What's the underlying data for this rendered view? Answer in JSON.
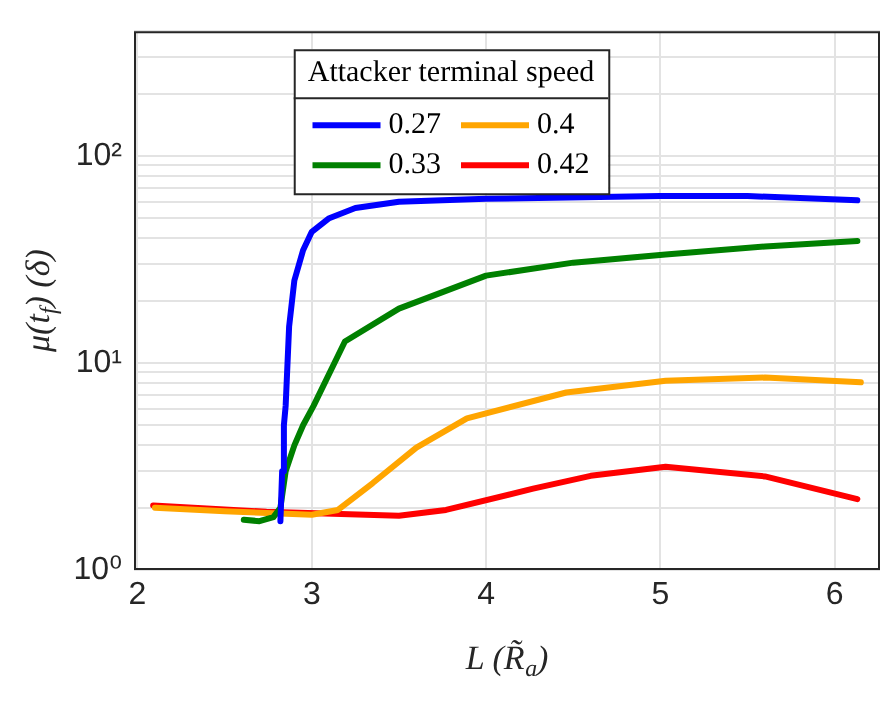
{
  "chart_data": {
    "type": "line",
    "xlabel": "L (R̃$_{a}$)",
    "ylabel": "μ(t$_{f}$) (δ)",
    "legend_title": "Attacker terminal speed",
    "legend": "top",
    "grid": true,
    "log": "y",
    "line_style": "solid",
    "marker": "none",
    "xlim": [
      1.98,
      6.26
    ],
    "xticks": [
      2,
      3,
      4,
      5,
      6
    ],
    "ylim": [
      1,
      400
    ],
    "yticks": [
      {
        "value": 1,
        "label": "10⁰"
      },
      {
        "value": 2,
        "label": null
      },
      {
        "value": 3,
        "label": null
      },
      {
        "value": 4,
        "label": null
      },
      {
        "value": 5,
        "label": null
      },
      {
        "value": 6,
        "label": null
      },
      {
        "value": 7,
        "label": null
      },
      {
        "value": 8,
        "label": null
      },
      {
        "value": 9,
        "label": null
      },
      {
        "value": 10,
        "label": "10¹"
      },
      {
        "value": 20,
        "label": null
      },
      {
        "value": 30,
        "label": null
      },
      {
        "value": 40,
        "label": null
      },
      {
        "value": 50,
        "label": null
      },
      {
        "value": 60,
        "label": null
      },
      {
        "value": 70,
        "label": null
      },
      {
        "value": 80,
        "label": null
      },
      {
        "value": 90,
        "label": null
      },
      {
        "value": 100,
        "label": "10²"
      },
      {
        "value": 200,
        "label": null
      },
      {
        "value": 300,
        "label": null
      },
      {
        "value": 400,
        "label": null
      }
    ],
    "series": [
      {
        "name": "0.27",
        "color": "#0000ff",
        "x": [
          2.82,
          2.83,
          2.84,
          2.85,
          2.87,
          2.9,
          2.95,
          3.0,
          3.1,
          3.25,
          3.5,
          4.0,
          5.0,
          5.5,
          6.13
        ],
        "values": [
          1.72,
          3,
          5,
          6.2,
          15,
          25,
          35,
          43,
          50,
          56,
          60,
          62,
          64,
          64,
          61
        ]
      },
      {
        "name": "0.33",
        "color": "#008000",
        "x": [
          2.61,
          2.7,
          2.78,
          2.82,
          2.85,
          2.9,
          2.95,
          3.01,
          3.19,
          3.5,
          4.0,
          4.5,
          5.03,
          5.6,
          6.13
        ],
        "values": [
          1.75,
          1.72,
          1.8,
          2.0,
          3,
          4,
          5,
          6.2,
          12.7,
          18.3,
          26.4,
          30.5,
          33.4,
          36.5,
          38.8
        ]
      },
      {
        "name": "0.4",
        "color": "#ffa500",
        "x": [
          2.1,
          2.5,
          3.0,
          3.15,
          3.35,
          3.6,
          3.89,
          4.46,
          5.03,
          5.6,
          6.15
        ],
        "values": [
          2.0,
          1.92,
          1.85,
          1.95,
          2.63,
          3.9,
          5.4,
          7.2,
          8.2,
          8.5,
          8.06
        ]
      },
      {
        "name": "0.42",
        "color": "#ff0000",
        "x": [
          2.09,
          2.74,
          3.5,
          3.77,
          4.27,
          4.6,
          5.03,
          5.6,
          6.13
        ],
        "values": [
          2.05,
          1.91,
          1.83,
          1.95,
          2.47,
          2.85,
          3.15,
          2.83,
          2.2
        ]
      }
    ]
  }
}
